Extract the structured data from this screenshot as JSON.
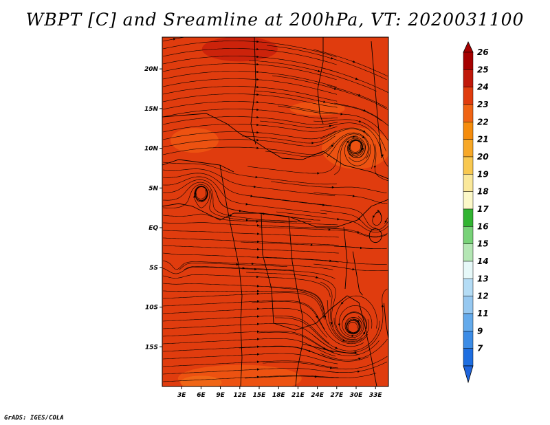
{
  "title": "WBPT [C] and Sreamline at 200hPa, VT: 2020031100",
  "credit": "GrADS: IGES/COLA",
  "map": {
    "lon_range": [
      0,
      35
    ],
    "lat_range": [
      -20,
      24
    ],
    "lat_ticks": [
      {
        "label": "20N",
        "lat": 20
      },
      {
        "label": "15N",
        "lat": 15
      },
      {
        "label": "10N",
        "lat": 10
      },
      {
        "label": "5N",
        "lat": 5
      },
      {
        "label": "EQ",
        "lat": 0
      },
      {
        "label": "5S",
        "lat": -5
      },
      {
        "label": "10S",
        "lat": -10
      },
      {
        "label": "15S",
        "lat": -15
      }
    ],
    "lon_ticks": [
      {
        "label": "3E",
        "lon": 3
      },
      {
        "label": "6E",
        "lon": 6
      },
      {
        "label": "9E",
        "lon": 9
      },
      {
        "label": "12E",
        "lon": 12
      },
      {
        "label": "15E",
        "lon": 15
      },
      {
        "label": "18E",
        "lon": 18
      },
      {
        "label": "21E",
        "lon": 21
      },
      {
        "label": "24E",
        "lon": 24
      },
      {
        "label": "27E",
        "lon": 27
      },
      {
        "label": "30E",
        "lon": 30
      },
      {
        "label": "33E",
        "lon": 33
      }
    ],
    "field_colors": {
      "base": "#e03c0e",
      "warm": "#c81e0a",
      "mid": "#ee5612",
      "cool": "#f06a18"
    }
  },
  "colorbar": {
    "levels": [
      {
        "label": "26",
        "color": "#a50000"
      },
      {
        "label": "25",
        "color": "#c0180a"
      },
      {
        "label": "24",
        "color": "#e03c0e"
      },
      {
        "label": "23",
        "color": "#f06414"
      },
      {
        "label": "22",
        "color": "#f58c0c"
      },
      {
        "label": "21",
        "color": "#f7a828"
      },
      {
        "label": "20",
        "color": "#f8c850"
      },
      {
        "label": "19",
        "color": "#fae89a"
      },
      {
        "label": "18",
        "color": "#fcf8c8"
      },
      {
        "label": "17",
        "color": "#32b432"
      },
      {
        "label": "16",
        "color": "#78d278"
      },
      {
        "label": "15",
        "color": "#b4e6b4"
      },
      {
        "label": "14",
        "color": "#e6f8f8"
      },
      {
        "label": "13",
        "color": "#b4dcf5"
      },
      {
        "label": "12",
        "color": "#96c8f0"
      },
      {
        "label": "11",
        "color": "#64aaeb"
      },
      {
        "label": "9",
        "color": "#3c8ce6"
      },
      {
        "label": "7",
        "color": "#1e6ee0"
      }
    ],
    "top_color": "#a50000",
    "bottom_color": "#1e64dc"
  }
}
